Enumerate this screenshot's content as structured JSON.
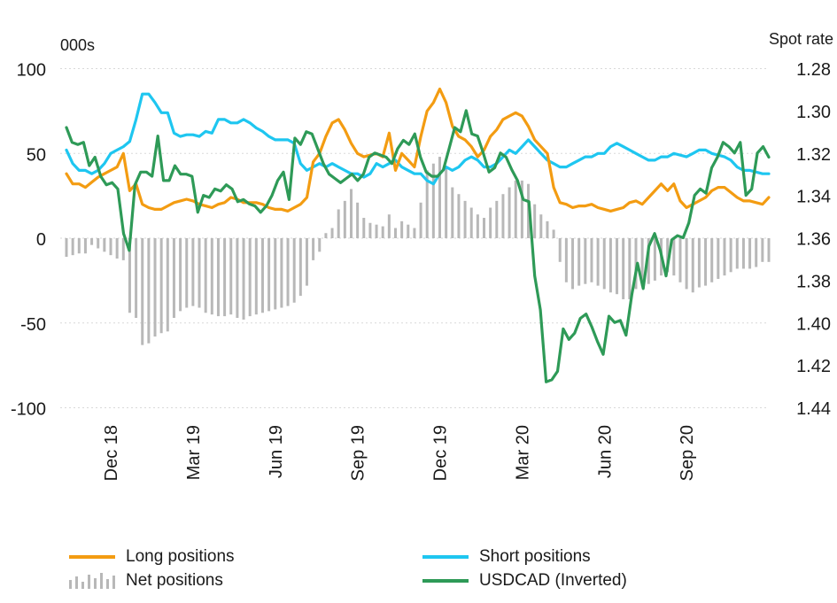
{
  "chart_data": {
    "type": "line",
    "left_axis": {
      "unit_label": "000s",
      "ticks": [
        "100",
        "50",
        "0",
        "-50",
        "-100"
      ],
      "range": [
        -100,
        100
      ]
    },
    "right_axis": {
      "unit_label": "Spot rate",
      "ticks": [
        "1.28",
        "1.30",
        "1.32",
        "1.34",
        "1.36",
        "1.38",
        "1.40",
        "1.42",
        "1.44"
      ],
      "range": [
        1.28,
        1.44
      ],
      "inverted": true
    },
    "x_tick_labels": [
      "Dec 18",
      "Mar 19",
      "Jun 19",
      "Sep 19",
      "Dec 19",
      "Mar 20",
      "Jun 20",
      "Sep 20"
    ],
    "x_tick_weeks": [
      7,
      20,
      33,
      46,
      59,
      72,
      85,
      98
    ],
    "grid": true,
    "legend_position": "bottom",
    "colors": {
      "long": "#f39c12",
      "short": "#1ec6f0",
      "net": "#b8b8b8",
      "usdcad": "#2e9a57"
    },
    "series": [
      {
        "name": "Long positions",
        "axis": "left",
        "values": [
          38,
          32,
          32,
          30,
          33,
          36,
          38,
          40,
          42,
          50,
          28,
          32,
          20,
          18,
          17,
          17,
          19,
          21,
          22,
          23,
          22,
          20,
          19,
          18,
          20,
          21,
          24,
          23,
          21,
          21,
          21,
          20,
          18,
          17,
          17,
          16,
          18,
          20,
          24,
          45,
          50,
          60,
          68,
          70,
          64,
          56,
          50,
          48,
          49,
          50,
          48,
          62,
          40,
          50,
          46,
          42,
          60,
          75,
          80,
          88,
          80,
          66,
          60,
          58,
          54,
          48,
          52,
          60,
          64,
          70,
          72,
          74,
          72,
          66,
          58,
          54,
          50,
          30,
          21,
          20,
          18,
          19,
          19,
          20,
          18,
          17,
          16,
          17,
          18,
          21,
          22,
          20,
          24,
          28,
          32,
          28,
          32,
          22,
          18,
          20,
          22,
          24,
          28,
          30,
          30,
          27,
          24,
          22,
          22,
          21,
          20,
          24
        ]
      },
      {
        "name": "Short positions",
        "axis": "left",
        "values": [
          52,
          44,
          40,
          40,
          38,
          40,
          44,
          50,
          52,
          54,
          57,
          70,
          85,
          85,
          80,
          74,
          74,
          62,
          60,
          61,
          61,
          60,
          63,
          62,
          70,
          70,
          68,
          68,
          70,
          68,
          65,
          63,
          60,
          58,
          58,
          58,
          56,
          44,
          40,
          42,
          44,
          42,
          44,
          42,
          40,
          38,
          38,
          36,
          38,
          44,
          42,
          44,
          46,
          42,
          40,
          38,
          38,
          34,
          32,
          38,
          42,
          40,
          42,
          46,
          48,
          46,
          42,
          42,
          44,
          48,
          52,
          50,
          54,
          58,
          54,
          50,
          46,
          44,
          42,
          42,
          44,
          46,
          48,
          48,
          50,
          50,
          54,
          56,
          54,
          52,
          50,
          48,
          46,
          46,
          48,
          48,
          50,
          49,
          48,
          50,
          52,
          52,
          50,
          49,
          48,
          46,
          42,
          40,
          40,
          39,
          38,
          38
        ]
      },
      {
        "name": "Net positions",
        "axis": "left",
        "values": [
          -11,
          -10,
          -9,
          -9,
          -4,
          -6,
          -8,
          -10,
          -12,
          -13,
          -44,
          -47,
          -63,
          -62,
          -58,
          -56,
          -55,
          -47,
          -43,
          -41,
          -40,
          -41,
          -44,
          -45,
          -46,
          -46,
          -45,
          -47,
          -48,
          -46,
          -45,
          -44,
          -43,
          -42,
          -41,
          -40,
          -38,
          -34,
          -28,
          -13,
          -8,
          3,
          6,
          17,
          22,
          29,
          21,
          12,
          9,
          8,
          7,
          14,
          6,
          10,
          8,
          6,
          21,
          40,
          44,
          48,
          42,
          30,
          26,
          22,
          18,
          14,
          12,
          18,
          22,
          26,
          30,
          34,
          34,
          32,
          20,
          14,
          10,
          5,
          -14,
          -26,
          -30,
          -28,
          -27,
          -26,
          -28,
          -30,
          -32,
          -33,
          -36,
          -36,
          -30,
          -28,
          -27,
          -25,
          -22,
          -20,
          -22,
          -26,
          -30,
          -32,
          -29,
          -28,
          -26,
          -24,
          -22,
          -20,
          -18,
          -18,
          -18,
          -17,
          -14,
          -14
        ]
      },
      {
        "name": "USDCAD (Inverted)",
        "axis": "right",
        "values": [
          1.308,
          1.315,
          1.316,
          1.315,
          1.326,
          1.322,
          1.331,
          1.335,
          1.334,
          1.337,
          1.358,
          1.366,
          1.335,
          1.329,
          1.329,
          1.331,
          1.312,
          1.333,
          1.333,
          1.326,
          1.33,
          1.33,
          1.331,
          1.348,
          1.34,
          1.341,
          1.337,
          1.338,
          1.335,
          1.337,
          1.343,
          1.342,
          1.344,
          1.345,
          1.348,
          1.345,
          1.34,
          1.333,
          1.329,
          1.342,
          1.313,
          1.316,
          1.31,
          1.311,
          1.318,
          1.325,
          1.33,
          1.332,
          1.334,
          1.332,
          1.33,
          1.333,
          1.33,
          1.322,
          1.32,
          1.321,
          1.322,
          1.325,
          1.318,
          1.314,
          1.316,
          1.311,
          1.322,
          1.329,
          1.331,
          1.331,
          1.328,
          1.318,
          1.308,
          1.31,
          1.3,
          1.311,
          1.312,
          1.32,
          1.329,
          1.327,
          1.32,
          1.322,
          1.328,
          1.333,
          1.342,
          1.343,
          1.378,
          1.394,
          1.428,
          1.427,
          1.423,
          1.403,
          1.408,
          1.405,
          1.398,
          1.396,
          1.402,
          1.409,
          1.415,
          1.397,
          1.4,
          1.399,
          1.406,
          1.387,
          1.372,
          1.384,
          1.364,
          1.358,
          1.366,
          1.378,
          1.361,
          1.359,
          1.36,
          1.353,
          1.34,
          1.337,
          1.339,
          1.327,
          1.322,
          1.315,
          1.317,
          1.32,
          1.315,
          1.34,
          1.337,
          1.32,
          1.317,
          1.322
        ]
      }
    ]
  },
  "legend": {
    "long": "Long positions",
    "short": "Short positions",
    "net": "Net positions",
    "usdcad": "USDCAD (Inverted)"
  }
}
